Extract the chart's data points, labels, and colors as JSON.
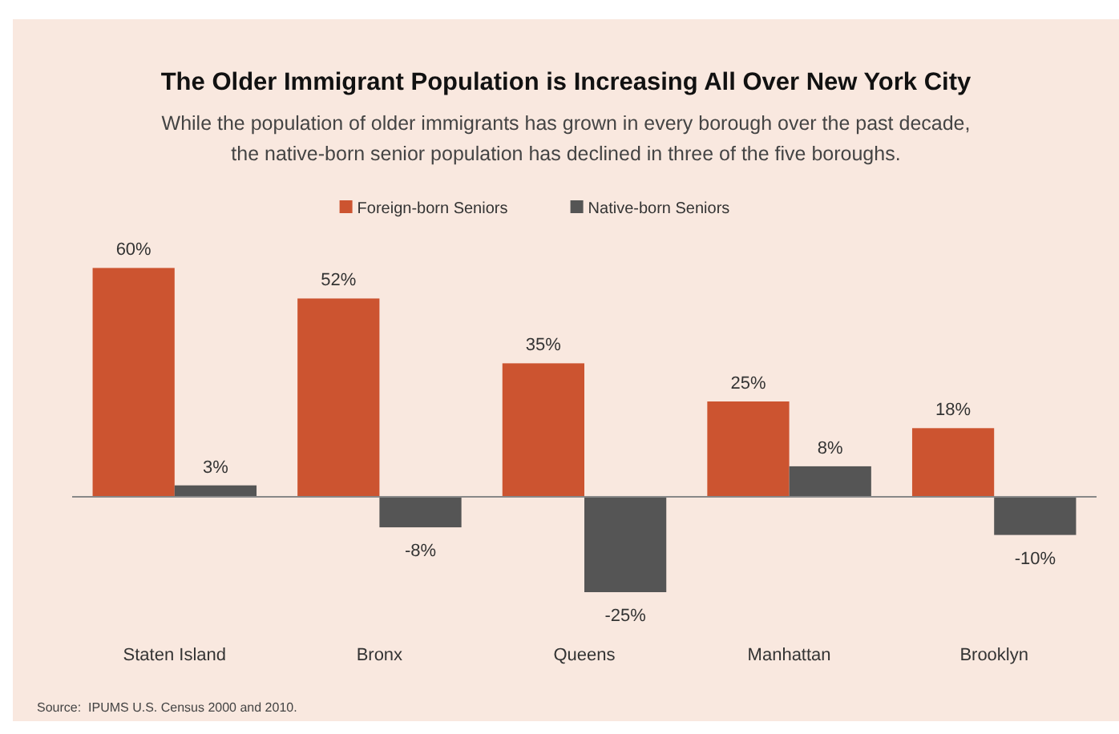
{
  "chart_data": {
    "type": "bar",
    "title": "The Older Immigrant Population is Increasing All Over New York City",
    "subtitle": "While the population of older immigrants has grown in every borough over the past decade,\nthe native-born senior population has declined in three of the five boroughs.",
    "categories": [
      "Staten Island",
      "Bronx",
      "Queens",
      "Manhattan",
      "Brooklyn"
    ],
    "series": [
      {
        "name": "Foreign-born Seniors",
        "color": "#cc5430",
        "values": [
          60,
          52,
          35,
          25,
          18
        ],
        "value_labels": [
          "60%",
          "52%",
          "35%",
          "25%",
          "18%"
        ]
      },
      {
        "name": "Native-born Seniors",
        "color": "#555555",
        "values": [
          3,
          -8,
          -25,
          8,
          -10
        ],
        "value_labels": [
          "3%",
          "-8%",
          "-25%",
          "8%",
          "-10%"
        ]
      }
    ],
    "legend": "top",
    "annotations": [
      "Source:  IPUMS U.S. Census 2000 and 2010."
    ]
  }
}
